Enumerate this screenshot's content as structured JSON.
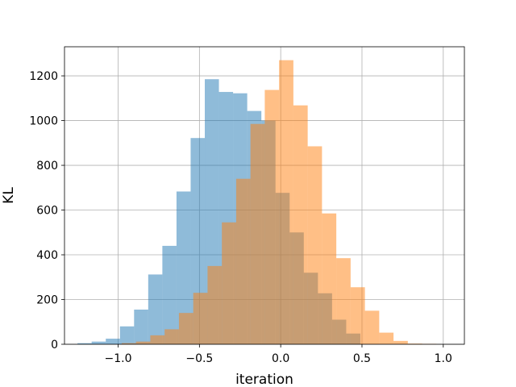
{
  "chart_data": {
    "type": "bar",
    "subtype": "overlapping-histogram",
    "title": "",
    "xlabel": "iteration",
    "ylabel": "KL",
    "xlim": [
      -1.33,
      1.13
    ],
    "ylim": [
      0,
      1330
    ],
    "grid": true,
    "legend": "none",
    "x_ticks": [
      -1.0,
      -0.5,
      0.0,
      0.5,
      1.0
    ],
    "x_tick_labels": [
      "−1.0",
      "−0.5",
      "0.0",
      "0.5",
      "1.0"
    ],
    "y_ticks": [
      0,
      200,
      400,
      600,
      800,
      1000,
      1200
    ],
    "y_tick_labels": [
      "0",
      "200",
      "400",
      "600",
      "800",
      "1000",
      "1200"
    ],
    "series": [
      {
        "color": "#1f77b4",
        "alpha": 0.5,
        "bin_edges": [
          -1.25,
          -1.163,
          -1.076,
          -0.989,
          -0.902,
          -0.815,
          -0.728,
          -0.641,
          -0.554,
          -0.467,
          -0.38,
          -0.293,
          -0.206,
          -0.119,
          -0.032,
          0.055,
          0.142,
          0.229,
          0.316,
          0.403,
          0.49
        ],
        "counts": [
          5,
          12,
          25,
          80,
          155,
          312,
          440,
          683,
          922,
          1185,
          1128,
          1122,
          1043,
          1000,
          677,
          500,
          320,
          228,
          110,
          48
        ]
      },
      {
        "color": "#ff7f0e",
        "alpha": 0.5,
        "bin_edges": [
          -0.978,
          -0.89,
          -0.802,
          -0.714,
          -0.626,
          -0.538,
          -0.45,
          -0.362,
          -0.274,
          -0.186,
          -0.098,
          -0.01,
          0.078,
          0.166,
          0.254,
          0.342,
          0.43,
          0.518,
          0.606,
          0.694,
          0.782,
          0.87,
          0.958,
          1.046
        ],
        "counts": [
          5,
          12,
          40,
          67,
          140,
          230,
          350,
          545,
          740,
          985,
          1137,
          1270,
          1068,
          885,
          585,
          385,
          255,
          150,
          52,
          15,
          3,
          2,
          0
        ]
      }
    ]
  }
}
